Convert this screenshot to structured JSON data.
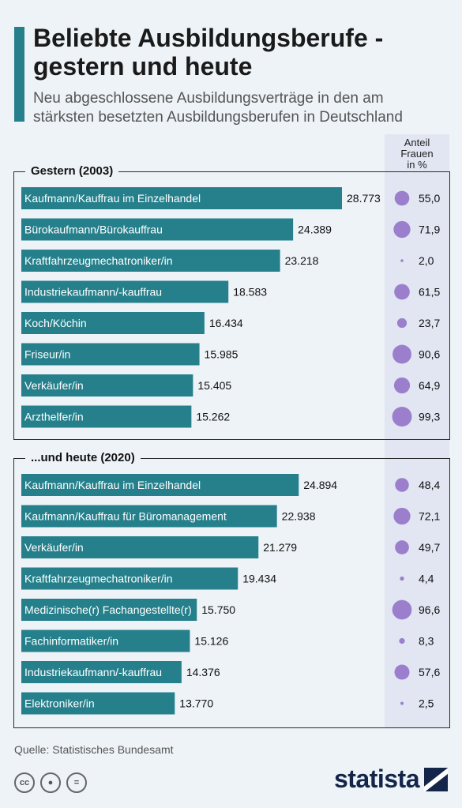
{
  "header": {
    "title": "Beliebte Ausbildungsberufe - gestern und heute",
    "subtitle": "Neu abgeschlossene Ausbildungsverträge in den am stärksten besetzten Ausbildungsberufen in Deutschland"
  },
  "column_header": [
    "Anteil",
    "Frauen",
    "in %"
  ],
  "footer": {
    "source": "Quelle: Statistisches Bundesamt",
    "logo": "statista",
    "license_icons": [
      "cc-icon",
      "attribution-icon",
      "no-derivatives-icon"
    ]
  },
  "colors": {
    "bar": "#25808c",
    "dot": "#9b7fcd",
    "background": "#eef3f7",
    "column_band": "#e1e6f2",
    "brand": "#13264a"
  },
  "chart_data": [
    {
      "type": "bar",
      "title": "Gestern (2003)",
      "categories": [
        "Kaufmann/Kauffrau im Einzelhandel",
        "Bürokaufmann/Bürokauffrau",
        "Kraftfahrzeugmechatroniker/in",
        "Industriekaufmann/-kauffrau",
        "Koch/Köchin",
        "Friseur/in",
        "Verkäufer/in",
        "Arzthelfer/in"
      ],
      "values": [
        28773,
        24389,
        23218,
        18583,
        16434,
        15985,
        15405,
        15262
      ],
      "value_labels": [
        "28.773",
        "24.389",
        "23.218",
        "18.583",
        "16.434",
        "15.985",
        "15.405",
        "15.262"
      ],
      "share_women": [
        55.0,
        71.9,
        2.0,
        61.5,
        23.7,
        90.6,
        64.9,
        99.3
      ],
      "share_women_labels": [
        "55,0",
        "71,9",
        "2,0",
        "61,5",
        "23,7",
        "90,6",
        "64,9",
        "99,3"
      ]
    },
    {
      "type": "bar",
      "title": "...und heute (2020)",
      "categories": [
        "Kaufmann/Kauffrau im Einzelhandel",
        "Kaufmann/Kauffrau für Büromanagement",
        "Verkäufer/in",
        "Kraftfahrzeugmechatroniker/in",
        "Medizinische(r) Fachangestellte(r)",
        "Fachinformatiker/in",
        "Industriekaufmann/-kauffrau",
        "Elektroniker/in"
      ],
      "values": [
        24894,
        22938,
        21279,
        19434,
        15750,
        15126,
        14376,
        13770
      ],
      "value_labels": [
        "24.894",
        "22.938",
        "21.279",
        "19.434",
        "15.750",
        "15.126",
        "14.376",
        "13.770"
      ],
      "share_women": [
        48.4,
        72.1,
        49.7,
        4.4,
        96.6,
        8.3,
        57.6,
        2.5
      ],
      "share_women_labels": [
        "48,4",
        "72,1",
        "49,7",
        "4,4",
        "96,6",
        "8,3",
        "57,6",
        "2,5"
      ]
    }
  ]
}
